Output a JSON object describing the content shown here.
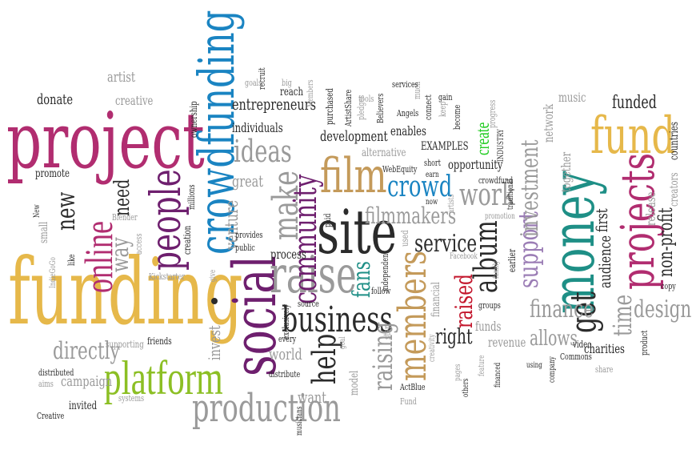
{
  "palette": {
    "magenta": "#b12d70",
    "purple": "#6e1f6e",
    "blue": "#1a84c2",
    "gold": "#e6b84a",
    "tan": "#c49a5a",
    "green": "#8cbf24",
    "teal": "#1e8f86",
    "grey": "#9a9a9a",
    "dark": "#2b2b2b",
    "red": "#c3162c",
    "lilac": "#9b7db5",
    "bright_green": "#22cc22"
  },
  "words": [
    {
      "text": "project",
      "color": "magenta"
    },
    {
      "text": "funding",
      "color": "gold"
    },
    {
      "text": "crowdfunding",
      "color": "blue"
    },
    {
      "text": "social",
      "color": "purple"
    },
    {
      "text": "money",
      "color": "teal"
    },
    {
      "text": "site",
      "color": "dark"
    },
    {
      "text": "platform",
      "color": "green"
    },
    {
      "text": "raise",
      "color": "grey"
    },
    {
      "text": "people",
      "color": "purple"
    },
    {
      "text": "fund",
      "color": "gold"
    },
    {
      "text": "projects",
      "color": "magenta"
    },
    {
      "text": "online",
      "color": "magenta"
    },
    {
      "text": "film",
      "color": "tan"
    },
    {
      "text": "community",
      "color": "purple"
    },
    {
      "text": "production",
      "color": "grey"
    },
    {
      "text": "business",
      "color": "dark"
    },
    {
      "text": "members",
      "color": "tan"
    },
    {
      "text": "make",
      "color": "grey"
    },
    {
      "text": "help",
      "color": "dark"
    },
    {
      "text": "ideas",
      "color": "grey"
    },
    {
      "text": "crowd",
      "color": "blue"
    },
    {
      "text": "work",
      "color": "grey"
    },
    {
      "text": "get",
      "color": "dark"
    },
    {
      "text": "album",
      "color": "dark"
    },
    {
      "text": "raising",
      "color": "grey"
    },
    {
      "text": "support",
      "color": "lilac"
    },
    {
      "text": "investment",
      "color": "grey"
    },
    {
      "text": "fans",
      "color": "teal"
    },
    {
      "text": "raised",
      "color": "red"
    },
    {
      "text": "finance",
      "color": "grey"
    },
    {
      "text": "design",
      "color": "grey"
    },
    {
      "text": "service",
      "color": "dark"
    },
    {
      "text": "directly",
      "color": "grey"
    },
    {
      "text": "new",
      "color": "dark"
    },
    {
      "text": "way",
      "color": "grey"
    },
    {
      "text": "need",
      "color": "dark"
    },
    {
      "text": "time",
      "color": "grey"
    },
    {
      "text": "non-profit",
      "color": "dark"
    },
    {
      "text": "filmmakers",
      "color": "grey"
    },
    {
      "text": "right",
      "color": "dark"
    },
    {
      "text": "allows",
      "color": "grey"
    },
    {
      "text": "create",
      "color": "bright_green"
    },
    {
      "text": "funded",
      "color": "dark"
    },
    {
      "text": "invest",
      "color": "grey"
    },
    {
      "text": "audience",
      "color": "dark"
    },
    {
      "text": "first",
      "color": "dark"
    },
    {
      "text": "entrepreneurs",
      "color": "dark"
    },
    {
      "text": "development",
      "color": "dark"
    },
    {
      "text": "campaign",
      "color": "grey"
    },
    {
      "text": "venture",
      "color": "grey"
    },
    {
      "text": "great",
      "color": "grey"
    },
    {
      "text": "world",
      "color": "grey"
    },
    {
      "text": "want",
      "color": "grey"
    },
    {
      "text": "donate",
      "color": "dark"
    },
    {
      "text": "artist",
      "color": "grey"
    },
    {
      "text": "creative",
      "color": "grey"
    },
    {
      "text": "individuals",
      "color": "dark"
    },
    {
      "text": "network",
      "color": "grey"
    },
    {
      "text": "together",
      "color": "grey"
    },
    {
      "text": "music",
      "color": "grey"
    },
    {
      "text": "EXAMPLES",
      "color": "dark"
    },
    {
      "text": "alternative",
      "color": "grey"
    },
    {
      "text": "opportunity",
      "color": "dark"
    },
    {
      "text": "enables",
      "color": "dark"
    },
    {
      "text": "process",
      "color": "dark"
    },
    {
      "text": "promote",
      "color": "dark"
    },
    {
      "text": "release",
      "color": "grey"
    },
    {
      "text": "creators",
      "color": "grey"
    },
    {
      "text": "countries",
      "color": "dark"
    },
    {
      "text": "charities",
      "color": "dark"
    },
    {
      "text": "funds",
      "color": "grey"
    },
    {
      "text": "revenue",
      "color": "grey"
    },
    {
      "text": "model",
      "color": "grey"
    },
    {
      "text": "financial",
      "color": "grey"
    },
    {
      "text": "friends",
      "color": "dark"
    },
    {
      "text": "supporting",
      "color": "grey"
    },
    {
      "text": "distributed",
      "color": "dark"
    },
    {
      "text": "aims",
      "color": "grey"
    },
    {
      "text": "invited",
      "color": "dark"
    },
    {
      "text": "systems",
      "color": "grey"
    },
    {
      "text": "Creative",
      "color": "dark"
    },
    {
      "text": "small",
      "color": "grey"
    },
    {
      "text": "New",
      "color": "dark"
    },
    {
      "text": "IndieGoGo",
      "color": "grey"
    },
    {
      "text": "like",
      "color": "dark"
    },
    {
      "text": "Blender",
      "color": "grey"
    },
    {
      "text": "access",
      "color": "grey"
    },
    {
      "text": "Kickstarter",
      "color": "grey"
    },
    {
      "text": "creation",
      "color": "dark"
    },
    {
      "text": "millions",
      "color": "dark"
    },
    {
      "text": "ownership",
      "color": "dark"
    },
    {
      "text": "goals",
      "color": "grey"
    },
    {
      "text": "recruit",
      "color": "dark"
    },
    {
      "text": "big",
      "color": "grey"
    },
    {
      "text": "reach",
      "color": "dark"
    },
    {
      "text": "Members",
      "color": "grey"
    },
    {
      "text": "purchased",
      "color": "dark"
    },
    {
      "text": "ArtistShare",
      "color": "dark"
    },
    {
      "text": "pledges",
      "color": "grey"
    },
    {
      "text": "tools",
      "color": "grey"
    },
    {
      "text": "Believers",
      "color": "dark"
    },
    {
      "text": "Angels",
      "color": "dark"
    },
    {
      "text": "much",
      "color": "grey"
    },
    {
      "text": "connect",
      "color": "dark"
    },
    {
      "text": "services",
      "color": "dark"
    },
    {
      "text": "gain",
      "color": "dark"
    },
    {
      "text": "keep",
      "color": "grey"
    },
    {
      "text": "become",
      "color": "dark"
    },
    {
      "text": "progress",
      "color": "grey"
    },
    {
      "text": "INDUSTRY",
      "color": "dark"
    },
    {
      "text": "WebEquity",
      "color": "dark"
    },
    {
      "text": "short",
      "color": "dark"
    },
    {
      "text": "earn",
      "color": "dark"
    },
    {
      "text": "crowdfund",
      "color": "dark"
    },
    {
      "text": "now",
      "color": "dark"
    },
    {
      "text": "artists",
      "color": "grey"
    },
    {
      "text": "traditional",
      "color": "dark"
    },
    {
      "text": "promotion",
      "color": "grey"
    },
    {
      "text": "paid",
      "color": "dark"
    },
    {
      "text": "independent",
      "color": "dark"
    },
    {
      "text": "used",
      "color": "grey"
    },
    {
      "text": "provides",
      "color": "dark"
    },
    {
      "text": "public",
      "color": "dark"
    },
    {
      "text": "give",
      "color": "grey"
    },
    {
      "text": "follow",
      "color": "dark"
    },
    {
      "text": "source",
      "color": "dark"
    },
    {
      "text": "exclusively",
      "color": "dark"
    },
    {
      "text": "every",
      "color": "dark"
    },
    {
      "text": "distribute",
      "color": "dark"
    },
    {
      "text": "start",
      "color": "grey"
    },
    {
      "text": "goal",
      "color": "grey"
    },
    {
      "text": "creativity",
      "color": "grey"
    },
    {
      "text": "pages",
      "color": "grey"
    },
    {
      "text": "others",
      "color": "dark"
    },
    {
      "text": "feature",
      "color": "grey"
    },
    {
      "text": "financed",
      "color": "dark"
    },
    {
      "text": "family",
      "color": "grey"
    },
    {
      "text": "groups",
      "color": "dark"
    },
    {
      "text": "earlier",
      "color": "dark"
    },
    {
      "text": "Facebook",
      "color": "grey"
    },
    {
      "text": "using",
      "color": "dark"
    },
    {
      "text": "company",
      "color": "dark"
    },
    {
      "text": "video",
      "color": "dark"
    },
    {
      "text": "Commons",
      "color": "dark"
    },
    {
      "text": "share",
      "color": "grey"
    },
    {
      "text": "product",
      "color": "dark"
    },
    {
      "text": "copy",
      "color": "dark"
    },
    {
      "text": "ActBlue",
      "color": "dark"
    },
    {
      "text": "Fund",
      "color": "grey"
    },
    {
      "text": "musicians",
      "color": "dark"
    }
  ]
}
